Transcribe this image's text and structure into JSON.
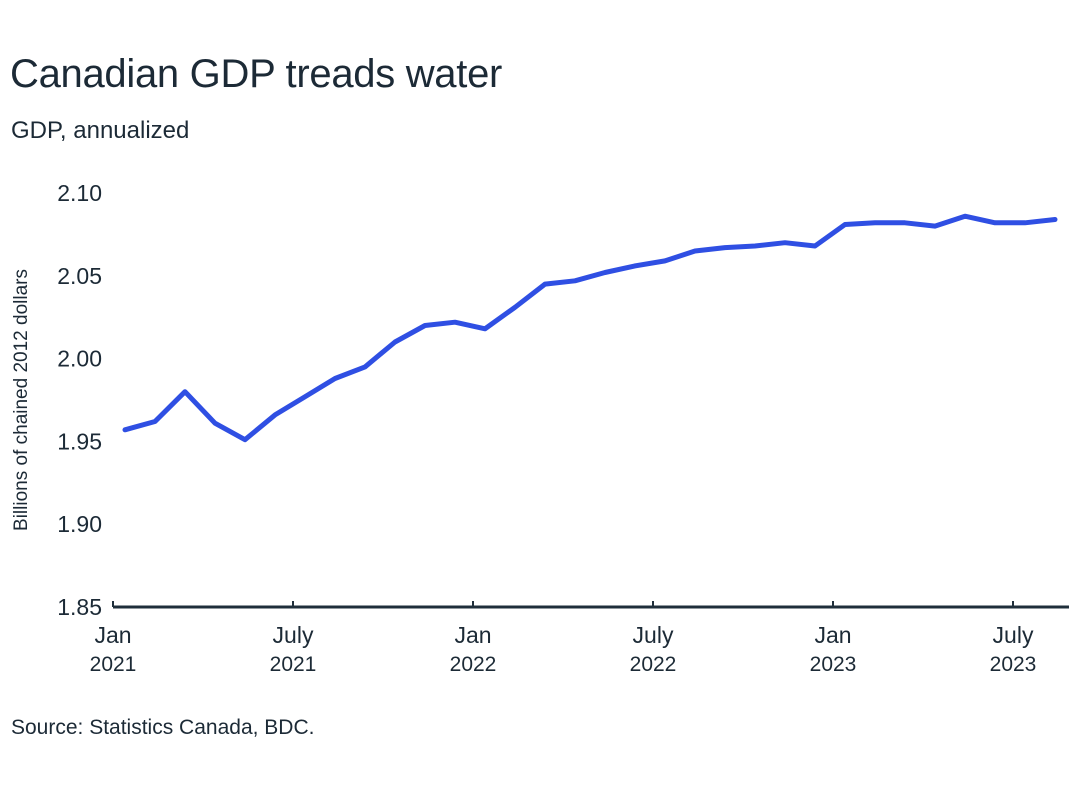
{
  "header": {
    "title": "Canadian GDP treads water",
    "subtitle": "GDP, annualized"
  },
  "footer": {
    "source": "Source: Statistics Canada, BDC."
  },
  "colors": {
    "line": "#2f4fe3",
    "axis": "#1f2f3b",
    "text": "#1c2a36"
  },
  "chart_data": {
    "type": "line",
    "title": "Canadian GDP treads water",
    "subtitle": "GDP, annualized",
    "xlabel": "",
    "ylabel": "Billions of chained 2012 dollars",
    "ylim": [
      1.85,
      2.1
    ],
    "yticks": [
      "1.85",
      "1.90",
      "1.95",
      "2.00",
      "2.05",
      "2.10"
    ],
    "ytick_values": [
      1.85,
      1.9,
      1.95,
      2.0,
      2.05,
      2.1
    ],
    "xticks": [
      {
        "month_index": 0,
        "line1": "Jan",
        "line2": "2021"
      },
      {
        "month_index": 6,
        "line1": "July",
        "line2": "2021"
      },
      {
        "month_index": 12,
        "line1": "Jan",
        "line2": "2022"
      },
      {
        "month_index": 18,
        "line1": "July",
        "line2": "2022"
      },
      {
        "month_index": 24,
        "line1": "Jan",
        "line2": "2023"
      },
      {
        "month_index": 30,
        "line1": "July",
        "line2": "2023"
      }
    ],
    "x_range_months": [
      0,
      31.8
    ],
    "grid": false,
    "legend": "none",
    "series": [
      {
        "name": "GDP",
        "x": [
          "2021-01",
          "2021-02",
          "2021-03",
          "2021-04",
          "2021-05",
          "2021-06",
          "2021-07",
          "2021-08",
          "2021-09",
          "2021-10",
          "2021-11",
          "2021-12",
          "2022-01",
          "2022-02",
          "2022-03",
          "2022-04",
          "2022-05",
          "2022-06",
          "2022-07",
          "2022-08",
          "2022-09",
          "2022-10",
          "2022-11",
          "2022-12",
          "2023-01",
          "2023-02",
          "2023-03",
          "2023-04",
          "2023-05",
          "2023-06",
          "2023-07",
          "2023-08"
        ],
        "values": [
          1.957,
          1.962,
          1.98,
          1.961,
          1.951,
          1.966,
          1.977,
          1.988,
          1.995,
          2.01,
          2.02,
          2.022,
          2.018,
          2.031,
          2.045,
          2.047,
          2.052,
          2.056,
          2.059,
          2.065,
          2.067,
          2.068,
          2.07,
          2.068,
          2.081,
          2.082,
          2.082,
          2.08,
          2.086,
          2.082,
          2.082,
          2.084
        ]
      }
    ],
    "source": "Source: Statistics Canada, BDC."
  }
}
